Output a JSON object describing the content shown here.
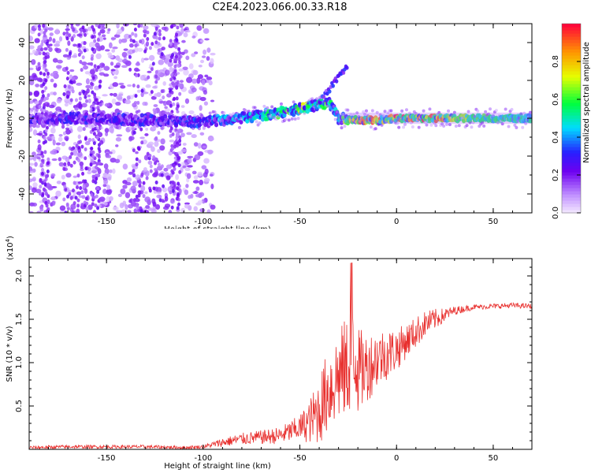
{
  "title": "C2E4.2023.066.00.33.R18",
  "colors": {
    "snr_line": "#e8302e",
    "axis": "#000000"
  },
  "chart_data": [
    {
      "type": "heatmap",
      "xlabel": "Height of straight line (km)",
      "ylabel": "Frequency (Hz)",
      "xlim": [
        -190,
        70
      ],
      "ylim": [
        -50,
        50
      ],
      "xticks": [
        -150,
        -100,
        -50,
        0,
        50
      ],
      "yticks": [
        -40,
        -20,
        0,
        20,
        40
      ],
      "colorbar": {
        "label": "Normalized spectral amplitude",
        "range": [
          0.0,
          1.0
        ],
        "ticks": [
          "0.0",
          "0.2",
          "0.4",
          "0.6",
          "0.8"
        ],
        "tick_values": [
          0.0,
          0.2,
          0.4,
          0.6,
          0.8
        ],
        "colormap": "rainbow (white-purple-blue-cyan-green-yellow-red)"
      },
      "ridge": {
        "x": [
          -190,
          -160,
          -130,
          -100,
          -80,
          -60,
          -50,
          -40,
          -35,
          -30,
          -20,
          -10,
          0,
          20,
          40,
          70
        ],
        "freq_hz": [
          0,
          0,
          -1,
          -2,
          0,
          3,
          5,
          7,
          8,
          0,
          -1,
          -1,
          0,
          0,
          0,
          0
        ],
        "amplitude": [
          0.3,
          0.3,
          0.3,
          0.35,
          0.45,
          0.55,
          0.65,
          0.6,
          0.55,
          0.5,
          0.9,
          0.8,
          0.9,
          0.85,
          0.6,
          0.5
        ]
      },
      "branch": {
        "x": [
          -40,
          -35,
          -30,
          -25
        ],
        "freq_hz": [
          8,
          15,
          22,
          28
        ]
      }
    },
    {
      "type": "line",
      "xlabel": "Height of straight line (km)",
      "ylabel": "SNR (10 * v/v)",
      "scale_label": "(x10",
      "scale_exp": "4",
      "scale_close": ")",
      "xlim": [
        -190,
        70
      ],
      "ylim": [
        0,
        2.2
      ],
      "xticks": [
        -150,
        -100,
        -50,
        0,
        50
      ],
      "yticks": [
        0.5,
        1.0,
        1.5,
        2.0
      ],
      "ytick_labels": [
        "0.5",
        "1.0",
        "1.5",
        "2.0"
      ],
      "series": [
        {
          "x": [
            -190,
            -170,
            -150,
            -130,
            -110,
            -100,
            -90,
            -80,
            -70,
            -60,
            -50,
            -45,
            -40,
            -35,
            -30,
            -25,
            -22,
            -20,
            -15,
            -10,
            -5,
            0,
            5,
            10,
            15,
            20,
            25,
            30,
            40,
            50,
            60,
            70
          ],
          "values": [
            0.02,
            0.03,
            0.03,
            0.03,
            0.02,
            0.03,
            0.08,
            0.12,
            0.14,
            0.16,
            0.25,
            0.32,
            0.45,
            0.7,
            0.85,
            0.95,
            1.3,
            0.9,
            0.95,
            1.05,
            1.1,
            1.15,
            1.25,
            1.35,
            1.45,
            1.5,
            1.55,
            1.6,
            1.64,
            1.65,
            1.66,
            1.65
          ],
          "noise": [
            0.02,
            0.02,
            0.02,
            0.02,
            0.02,
            0.02,
            0.05,
            0.07,
            0.08,
            0.1,
            0.15,
            0.25,
            0.4,
            0.5,
            0.55,
            0.6,
            0.7,
            0.5,
            0.4,
            0.35,
            0.3,
            0.25,
            0.2,
            0.18,
            0.15,
            0.12,
            0.08,
            0.05,
            0.03,
            0.03,
            0.03,
            0.03
          ]
        }
      ]
    }
  ]
}
